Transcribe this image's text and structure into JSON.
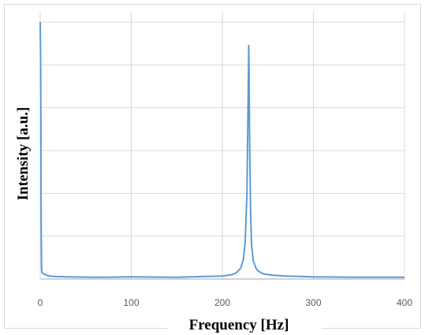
{
  "chart_data": {
    "type": "line",
    "title": "",
    "xlabel": "Frequency  [Hz]",
    "ylabel": "Intensity [a.u.]",
    "xlim": [
      0,
      400
    ],
    "ylim": [
      0,
      6
    ],
    "x_ticks": [
      0,
      100,
      200,
      300,
      400
    ],
    "y_tick_labels_shown": false,
    "grid": true,
    "legend": "none",
    "line_color": "#5b9bd5",
    "series": [
      {
        "x": [
          0,
          0.5,
          1,
          1.5,
          2,
          4,
          8,
          15,
          30,
          60,
          100,
          150,
          180,
          200,
          210,
          215,
          220,
          223,
          225,
          227,
          228,
          229,
          230,
          231,
          232,
          234,
          237,
          240,
          245,
          255,
          270,
          300,
          350,
          400
        ],
        "values": [
          6.0,
          5.0,
          1.2,
          0.25,
          0.15,
          0.12,
          0.08,
          0.06,
          0.05,
          0.04,
          0.05,
          0.04,
          0.06,
          0.07,
          0.1,
          0.14,
          0.25,
          0.45,
          0.85,
          2.0,
          3.6,
          5.45,
          3.2,
          1.6,
          0.8,
          0.42,
          0.25,
          0.18,
          0.12,
          0.09,
          0.07,
          0.05,
          0.04,
          0.04
        ]
      }
    ]
  }
}
